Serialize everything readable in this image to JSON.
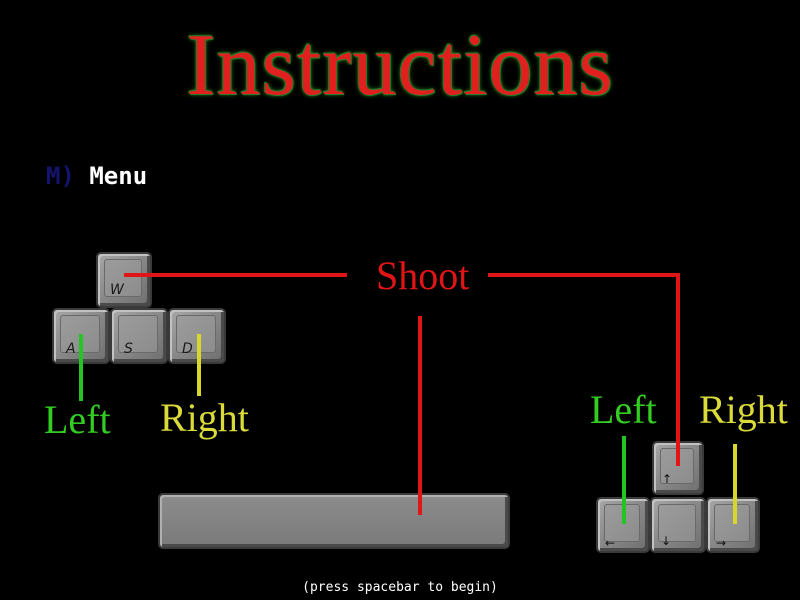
{
  "title": "Instructions",
  "menu": {
    "key": "M)",
    "label": "Menu"
  },
  "wasd_keys": {
    "w": "W",
    "a": "A",
    "s": "S",
    "d": "D"
  },
  "arrow_keys": {
    "up": "↑",
    "left": "←",
    "down": "↓",
    "right": "→"
  },
  "labels": {
    "shoot": "Shoot",
    "left_wasd": "Left",
    "right_wasd": "Right",
    "left_arrows": "Left",
    "right_arrows": "Right"
  },
  "footer": "(press spacebar to begin)",
  "colors": {
    "title": "#e01f1f",
    "title_glow": "#2f8a2f",
    "shoot": "#e01515",
    "left": "#33cc22",
    "right": "#dada3a",
    "menu_key": "#14146e",
    "background": "#000000"
  }
}
